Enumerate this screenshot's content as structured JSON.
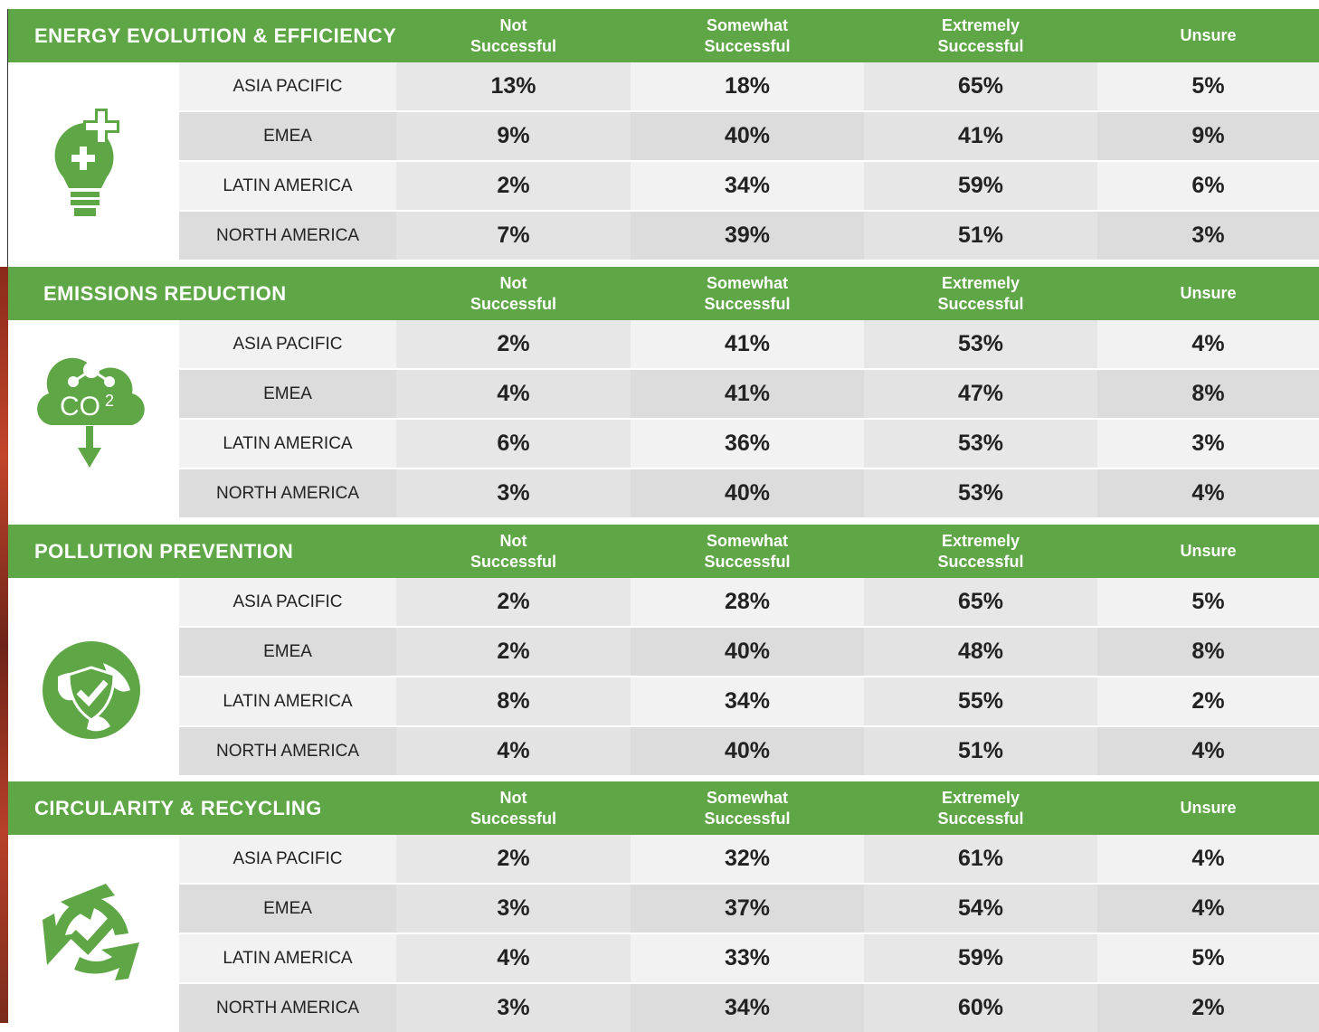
{
  "sections": [
    {
      "title": "ENERGY EVOLUTION & EFFICIENCY",
      "columns": [
        "Not\nSuccessful",
        "Somewhat\nSuccessful",
        "Extremely\nSuccessful",
        "Unsure"
      ],
      "rows": [
        {
          "region": "ASIA PACIFIC",
          "values": [
            "13%",
            "18%",
            "65%",
            "5%"
          ]
        },
        {
          "region": "EMEA",
          "values": [
            "9%",
            "40%",
            "41%",
            "9%"
          ]
        },
        {
          "region": "LATIN AMERICA",
          "values": [
            "2%",
            "34%",
            "59%",
            "6%"
          ]
        },
        {
          "region": "NORTH AMERICA",
          "values": [
            "7%",
            "39%",
            "51%",
            "3%"
          ]
        }
      ]
    },
    {
      "title": "EMISSIONS REDUCTION",
      "columns": [
        "Not\nSuccessful",
        "Somewhat\nSuccessful",
        "Extremely\nSuccessful",
        "Unsure"
      ],
      "rows": [
        {
          "region": "ASIA PACIFIC",
          "values": [
            "2%",
            "41%",
            "53%",
            "4%"
          ]
        },
        {
          "region": "EMEA",
          "values": [
            "4%",
            "41%",
            "47%",
            "8%"
          ]
        },
        {
          "region": "LATIN AMERICA",
          "values": [
            "6%",
            "36%",
            "53%",
            "3%"
          ]
        },
        {
          "region": "NORTH AMERICA",
          "values": [
            "3%",
            "40%",
            "53%",
            "4%"
          ]
        }
      ]
    },
    {
      "title": "POLLUTION PREVENTION",
      "columns": [
        "Not\nSuccessful",
        "Somewhat\nSuccessful",
        "Extremely\nSuccessful",
        "Unsure"
      ],
      "rows": [
        {
          "region": "ASIA PACIFIC",
          "values": [
            "2%",
            "28%",
            "65%",
            "5%"
          ]
        },
        {
          "region": "EMEA",
          "values": [
            "2%",
            "40%",
            "48%",
            "8%"
          ]
        },
        {
          "region": "LATIN AMERICA",
          "values": [
            "8%",
            "34%",
            "55%",
            "2%"
          ]
        },
        {
          "region": "NORTH AMERICA",
          "values": [
            "4%",
            "40%",
            "51%",
            "4%"
          ]
        }
      ]
    },
    {
      "title": "CIRCULARITY & RECYCLING",
      "columns": [
        "Not\nSuccessful",
        "Somewhat\nSuccessful",
        "Extremely\nSuccessful",
        "Unsure"
      ],
      "rows": [
        {
          "region": "ASIA PACIFIC",
          "values": [
            "2%",
            "32%",
            "61%",
            "4%"
          ]
        },
        {
          "region": "EMEA",
          "values": [
            "3%",
            "37%",
            "54%",
            "4%"
          ]
        },
        {
          "region": "LATIN AMERICA",
          "values": [
            "4%",
            "33%",
            "59%",
            "5%"
          ]
        },
        {
          "region": "NORTH AMERICA",
          "values": [
            "3%",
            "34%",
            "60%",
            "2%"
          ]
        }
      ]
    }
  ]
}
